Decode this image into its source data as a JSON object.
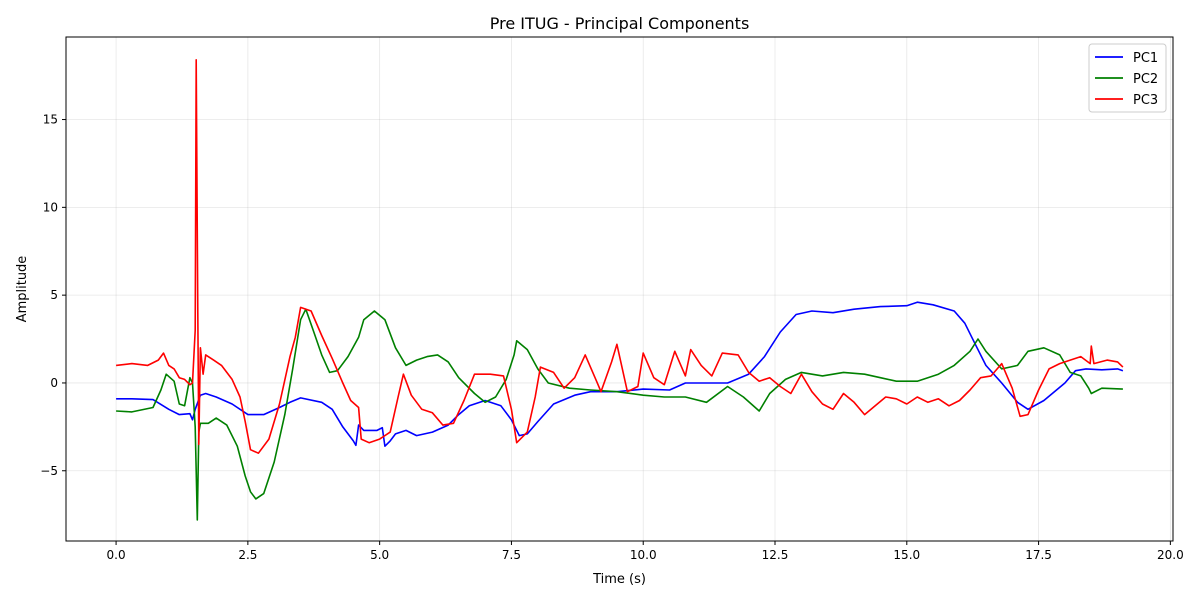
{
  "chart_data": {
    "type": "line",
    "title": "Pre ITUG - Principal Components",
    "xlabel": "Time (s)",
    "ylabel": "Amplitude",
    "xlim": [
      -0.95,
      20.05
    ],
    "ylim": [
      -9.0,
      19.7
    ],
    "xticks": [
      0.0,
      2.5,
      5.0,
      7.5,
      10.0,
      12.5,
      15.0,
      17.5,
      20.0
    ],
    "xtick_labels": [
      "0.0",
      "2.5",
      "5.0",
      "7.5",
      "10.0",
      "12.5",
      "15.0",
      "17.5",
      "20.0"
    ],
    "yticks": [
      -5,
      0,
      5,
      10,
      15
    ],
    "ytick_labels": [
      "−5",
      "0",
      "5",
      "10",
      "15"
    ],
    "grid": true,
    "legend_position": "top-right",
    "series": [
      {
        "name": "PC1",
        "color": "#0000ff",
        "points": [
          [
            0,
            -0.9
          ],
          [
            0.3,
            -0.9
          ],
          [
            0.7,
            -0.95
          ],
          [
            1.0,
            -1.5
          ],
          [
            1.2,
            -1.8
          ],
          [
            1.4,
            -1.75
          ],
          [
            1.45,
            -2.1
          ],
          [
            1.5,
            -1.5
          ],
          [
            1.6,
            -0.7
          ],
          [
            1.7,
            -0.6
          ],
          [
            1.9,
            -0.8
          ],
          [
            2.2,
            -1.2
          ],
          [
            2.5,
            -1.8
          ],
          [
            2.8,
            -1.8
          ],
          [
            3.1,
            -1.4
          ],
          [
            3.3,
            -1.1
          ],
          [
            3.5,
            -0.85
          ],
          [
            3.9,
            -1.1
          ],
          [
            4.1,
            -1.5
          ],
          [
            4.3,
            -2.5
          ],
          [
            4.5,
            -3.3
          ],
          [
            4.55,
            -3.55
          ],
          [
            4.6,
            -2.4
          ],
          [
            4.7,
            -2.7
          ],
          [
            4.95,
            -2.7
          ],
          [
            5.05,
            -2.55
          ],
          [
            5.1,
            -3.6
          ],
          [
            5.2,
            -3.3
          ],
          [
            5.3,
            -2.9
          ],
          [
            5.5,
            -2.7
          ],
          [
            5.7,
            -3.0
          ],
          [
            6.0,
            -2.8
          ],
          [
            6.3,
            -2.4
          ],
          [
            6.5,
            -1.8
          ],
          [
            6.7,
            -1.3
          ],
          [
            7.0,
            -1.0
          ],
          [
            7.3,
            -1.3
          ],
          [
            7.5,
            -2.1
          ],
          [
            7.65,
            -3.0
          ],
          [
            7.8,
            -2.9
          ],
          [
            8.0,
            -2.2
          ],
          [
            8.3,
            -1.2
          ],
          [
            8.7,
            -0.7
          ],
          [
            9.0,
            -0.5
          ],
          [
            9.5,
            -0.5
          ],
          [
            10.0,
            -0.35
          ],
          [
            10.5,
            -0.4
          ],
          [
            10.8,
            0.0
          ],
          [
            11.2,
            0.0
          ],
          [
            11.6,
            0.0
          ],
          [
            12.0,
            0.5
          ],
          [
            12.3,
            1.5
          ],
          [
            12.6,
            2.9
          ],
          [
            12.9,
            3.9
          ],
          [
            13.2,
            4.1
          ],
          [
            13.6,
            4.0
          ],
          [
            14.0,
            4.2
          ],
          [
            14.5,
            4.35
          ],
          [
            15.0,
            4.4
          ],
          [
            15.2,
            4.6
          ],
          [
            15.5,
            4.45
          ],
          [
            15.9,
            4.1
          ],
          [
            16.1,
            3.4
          ],
          [
            16.3,
            2.2
          ],
          [
            16.5,
            1.0
          ],
          [
            16.8,
            0.0
          ],
          [
            17.1,
            -1.1
          ],
          [
            17.3,
            -1.5
          ],
          [
            17.6,
            -1.0
          ],
          [
            18.0,
            0.0
          ],
          [
            18.2,
            0.7
          ],
          [
            18.4,
            0.8
          ],
          [
            18.7,
            0.75
          ],
          [
            19.0,
            0.8
          ],
          [
            19.1,
            0.7
          ]
        ]
      },
      {
        "name": "PC2",
        "color": "#008000",
        "points": [
          [
            0,
            -1.6
          ],
          [
            0.3,
            -1.65
          ],
          [
            0.7,
            -1.4
          ],
          [
            0.85,
            -0.4
          ],
          [
            0.95,
            0.5
          ],
          [
            1.1,
            0.1
          ],
          [
            1.2,
            -1.2
          ],
          [
            1.3,
            -1.3
          ],
          [
            1.4,
            0.3
          ],
          [
            1.45,
            0.0
          ],
          [
            1.5,
            -2.5
          ],
          [
            1.54,
            -7.8
          ],
          [
            1.57,
            -2.8
          ],
          [
            1.6,
            -2.3
          ],
          [
            1.75,
            -2.3
          ],
          [
            1.9,
            -2.0
          ],
          [
            2.1,
            -2.4
          ],
          [
            2.3,
            -3.6
          ],
          [
            2.45,
            -5.3
          ],
          [
            2.55,
            -6.2
          ],
          [
            2.65,
            -6.6
          ],
          [
            2.8,
            -6.3
          ],
          [
            3.0,
            -4.5
          ],
          [
            3.2,
            -1.8
          ],
          [
            3.35,
            0.8
          ],
          [
            3.5,
            3.6
          ],
          [
            3.6,
            4.2
          ],
          [
            3.75,
            2.9
          ],
          [
            3.9,
            1.6
          ],
          [
            4.05,
            0.6
          ],
          [
            4.2,
            0.7
          ],
          [
            4.4,
            1.5
          ],
          [
            4.6,
            2.6
          ],
          [
            4.7,
            3.6
          ],
          [
            4.9,
            4.1
          ],
          [
            5.1,
            3.6
          ],
          [
            5.3,
            2.0
          ],
          [
            5.5,
            1.0
          ],
          [
            5.7,
            1.3
          ],
          [
            5.9,
            1.5
          ],
          [
            6.1,
            1.6
          ],
          [
            6.3,
            1.2
          ],
          [
            6.5,
            0.3
          ],
          [
            6.8,
            -0.6
          ],
          [
            7.0,
            -1.1
          ],
          [
            7.2,
            -0.8
          ],
          [
            7.4,
            0.2
          ],
          [
            7.55,
            1.6
          ],
          [
            7.6,
            2.4
          ],
          [
            7.8,
            1.9
          ],
          [
            8.0,
            0.8
          ],
          [
            8.2,
            0.0
          ],
          [
            8.6,
            -0.3
          ],
          [
            9.0,
            -0.4
          ],
          [
            9.5,
            -0.5
          ],
          [
            10.0,
            -0.7
          ],
          [
            10.4,
            -0.8
          ],
          [
            10.8,
            -0.8
          ],
          [
            11.2,
            -1.1
          ],
          [
            11.6,
            -0.2
          ],
          [
            11.9,
            -0.8
          ],
          [
            12.2,
            -1.6
          ],
          [
            12.4,
            -0.6
          ],
          [
            12.7,
            0.2
          ],
          [
            13.0,
            0.6
          ],
          [
            13.4,
            0.4
          ],
          [
            13.8,
            0.6
          ],
          [
            14.2,
            0.5
          ],
          [
            14.5,
            0.3
          ],
          [
            14.8,
            0.1
          ],
          [
            15.2,
            0.1
          ],
          [
            15.6,
            0.5
          ],
          [
            15.9,
            1.0
          ],
          [
            16.2,
            1.8
          ],
          [
            16.35,
            2.5
          ],
          [
            16.5,
            1.8
          ],
          [
            16.8,
            0.8
          ],
          [
            17.1,
            1.0
          ],
          [
            17.3,
            1.8
          ],
          [
            17.6,
            2.0
          ],
          [
            17.9,
            1.6
          ],
          [
            18.1,
            0.6
          ],
          [
            18.3,
            0.4
          ],
          [
            18.45,
            -0.3
          ],
          [
            18.5,
            -0.6
          ],
          [
            18.7,
            -0.3
          ],
          [
            19.1,
            -0.35
          ]
        ]
      },
      {
        "name": "PC3",
        "color": "#ff0000",
        "points": [
          [
            0,
            1.0
          ],
          [
            0.3,
            1.1
          ],
          [
            0.6,
            1.0
          ],
          [
            0.8,
            1.3
          ],
          [
            0.9,
            1.7
          ],
          [
            1.0,
            1.0
          ],
          [
            1.1,
            0.8
          ],
          [
            1.2,
            0.3
          ],
          [
            1.3,
            0.2
          ],
          [
            1.4,
            -0.1
          ],
          [
            1.45,
            0.0
          ],
          [
            1.5,
            3.0
          ],
          [
            1.52,
            18.4
          ],
          [
            1.55,
            4.0
          ],
          [
            1.57,
            -3.5
          ],
          [
            1.6,
            2.0
          ],
          [
            1.65,
            0.5
          ],
          [
            1.7,
            1.6
          ],
          [
            1.85,
            1.3
          ],
          [
            2.0,
            1.0
          ],
          [
            2.2,
            0.2
          ],
          [
            2.35,
            -0.8
          ],
          [
            2.45,
            -2.2
          ],
          [
            2.55,
            -3.8
          ],
          [
            2.7,
            -4.0
          ],
          [
            2.9,
            -3.2
          ],
          [
            3.1,
            -1.2
          ],
          [
            3.3,
            1.5
          ],
          [
            3.4,
            2.6
          ],
          [
            3.5,
            4.3
          ],
          [
            3.7,
            4.1
          ],
          [
            3.9,
            2.7
          ],
          [
            4.1,
            1.4
          ],
          [
            4.3,
            0.0
          ],
          [
            4.45,
            -1.0
          ],
          [
            4.6,
            -1.4
          ],
          [
            4.65,
            -3.2
          ],
          [
            4.8,
            -3.4
          ],
          [
            5.0,
            -3.2
          ],
          [
            5.2,
            -2.8
          ],
          [
            5.35,
            -0.8
          ],
          [
            5.45,
            0.5
          ],
          [
            5.6,
            -0.7
          ],
          [
            5.8,
            -1.5
          ],
          [
            6.0,
            -1.7
          ],
          [
            6.2,
            -2.4
          ],
          [
            6.4,
            -2.3
          ],
          [
            6.6,
            -1.0
          ],
          [
            6.8,
            0.5
          ],
          [
            7.1,
            0.5
          ],
          [
            7.35,
            0.4
          ],
          [
            7.5,
            -1.5
          ],
          [
            7.6,
            -3.4
          ],
          [
            7.8,
            -2.8
          ],
          [
            7.95,
            -0.8
          ],
          [
            8.05,
            0.9
          ],
          [
            8.3,
            0.6
          ],
          [
            8.5,
            -0.3
          ],
          [
            8.7,
            0.3
          ],
          [
            8.9,
            1.6
          ],
          [
            9.1,
            0.2
          ],
          [
            9.2,
            -0.5
          ],
          [
            9.4,
            1.2
          ],
          [
            9.5,
            2.2
          ],
          [
            9.7,
            -0.5
          ],
          [
            9.9,
            -0.2
          ],
          [
            10.0,
            1.7
          ],
          [
            10.2,
            0.3
          ],
          [
            10.4,
            -0.1
          ],
          [
            10.6,
            1.8
          ],
          [
            10.8,
            0.4
          ],
          [
            10.9,
            1.9
          ],
          [
            11.1,
            1.0
          ],
          [
            11.3,
            0.4
          ],
          [
            11.5,
            1.7
          ],
          [
            11.8,
            1.6
          ],
          [
            12.0,
            0.6
          ],
          [
            12.2,
            0.1
          ],
          [
            12.4,
            0.3
          ],
          [
            12.6,
            -0.2
          ],
          [
            12.8,
            -0.6
          ],
          [
            13.0,
            0.5
          ],
          [
            13.2,
            -0.5
          ],
          [
            13.4,
            -1.2
          ],
          [
            13.6,
            -1.5
          ],
          [
            13.8,
            -0.6
          ],
          [
            14.0,
            -1.1
          ],
          [
            14.2,
            -1.8
          ],
          [
            14.4,
            -1.3
          ],
          [
            14.6,
            -0.8
          ],
          [
            14.8,
            -0.9
          ],
          [
            15.0,
            -1.2
          ],
          [
            15.2,
            -0.8
          ],
          [
            15.4,
            -1.1
          ],
          [
            15.6,
            -0.9
          ],
          [
            15.8,
            -1.3
          ],
          [
            16.0,
            -1.0
          ],
          [
            16.2,
            -0.4
          ],
          [
            16.4,
            0.3
          ],
          [
            16.6,
            0.4
          ],
          [
            16.8,
            1.1
          ],
          [
            17.0,
            -0.3
          ],
          [
            17.15,
            -1.9
          ],
          [
            17.3,
            -1.8
          ],
          [
            17.5,
            -0.4
          ],
          [
            17.7,
            0.8
          ],
          [
            17.9,
            1.1
          ],
          [
            18.1,
            1.3
          ],
          [
            18.3,
            1.5
          ],
          [
            18.48,
            1.1
          ],
          [
            18.5,
            2.1
          ],
          [
            18.55,
            1.1
          ],
          [
            18.8,
            1.3
          ],
          [
            19.0,
            1.2
          ],
          [
            19.1,
            0.9
          ]
        ]
      }
    ]
  }
}
